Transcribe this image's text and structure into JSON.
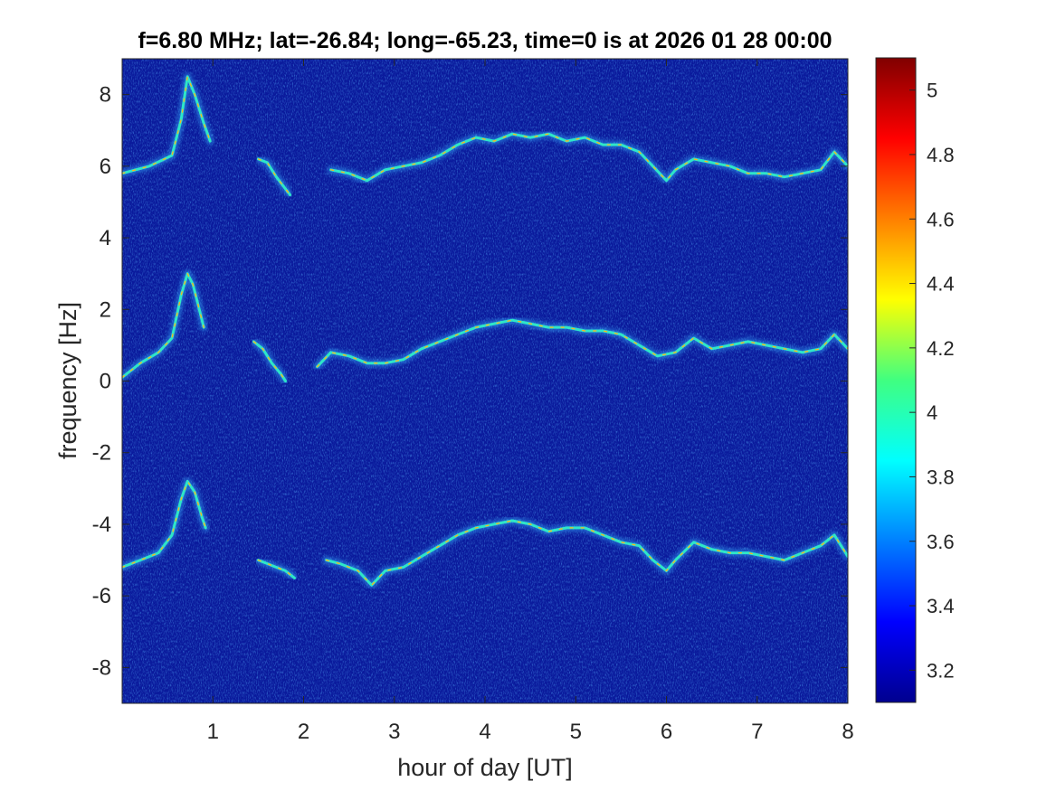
{
  "chart_data": {
    "type": "heatmap",
    "title": "f=6.80 MHz;  lat=-26.84; long=-65.23, time=0 is at 2026 01 28 00:00",
    "xlabel": "hour of day [UT]",
    "ylabel": "frequency [Hz]",
    "xlim": [
      0,
      8
    ],
    "ylim": [
      -9,
      9
    ],
    "x_ticks": [
      1,
      2,
      3,
      4,
      5,
      6,
      7,
      8
    ],
    "y_ticks": [
      -8,
      -6,
      -4,
      -2,
      0,
      2,
      4,
      6,
      8
    ],
    "x_tick_labels": [
      "1",
      "2",
      "3",
      "4",
      "5",
      "6",
      "7",
      "8"
    ],
    "y_tick_labels": [
      "-8",
      "-6",
      "-4",
      "-2",
      "0",
      "2",
      "4",
      "6",
      "8"
    ],
    "colorbar": {
      "range": [
        3.1,
        5.1
      ],
      "ticks": [
        3.2,
        3.4,
        3.6,
        3.8,
        4,
        4.2,
        4.4,
        4.6,
        4.8,
        5
      ],
      "tick_labels": [
        "3.2",
        "3.4",
        "3.6",
        "3.8",
        "4",
        "4.2",
        "4.4",
        "4.6",
        "4.8",
        "5"
      ],
      "colormap": "jet"
    },
    "background_color": "#0a1a9c",
    "grid": false,
    "series": [
      {
        "x": [
          0.0,
          0.3,
          0.55,
          0.65,
          0.72,
          0.8,
          0.9,
          0.97
        ],
        "y": [
          5.8,
          6.0,
          6.3,
          7.3,
          8.5,
          8.0,
          7.2,
          6.7
        ]
      },
      {
        "x": [
          1.5,
          1.6,
          1.7,
          1.85
        ],
        "y": [
          6.2,
          6.1,
          5.7,
          5.2
        ]
      },
      {
        "x": [
          2.3,
          2.5,
          2.7,
          2.9,
          3.1,
          3.3,
          3.5,
          3.7,
          3.9,
          4.1,
          4.3,
          4.5,
          4.7,
          4.9,
          5.1,
          5.3,
          5.5,
          5.7,
          5.85,
          6.0,
          6.1,
          6.3,
          6.5,
          6.7,
          6.9,
          7.1,
          7.3,
          7.5,
          7.7,
          7.85,
          8.0
        ],
        "y": [
          5.9,
          5.8,
          5.6,
          5.9,
          6.0,
          6.1,
          6.3,
          6.6,
          6.8,
          6.7,
          6.9,
          6.8,
          6.9,
          6.7,
          6.8,
          6.6,
          6.6,
          6.4,
          6.0,
          5.6,
          5.9,
          6.2,
          6.1,
          6.0,
          5.8,
          5.8,
          5.7,
          5.8,
          5.9,
          6.4,
          6.0
        ]
      },
      {
        "x": [
          0.0,
          0.2,
          0.4,
          0.55,
          0.65,
          0.72,
          0.78,
          0.84,
          0.9
        ],
        "y": [
          0.1,
          0.5,
          0.8,
          1.2,
          2.4,
          3.0,
          2.7,
          2.1,
          1.5
        ]
      },
      {
        "x": [
          1.45,
          1.55,
          1.65,
          1.75,
          1.8
        ],
        "y": [
          1.1,
          0.9,
          0.5,
          0.2,
          0.0
        ]
      },
      {
        "x": [
          2.15,
          2.3,
          2.5,
          2.7,
          2.9,
          3.1,
          3.3,
          3.5,
          3.7,
          3.9,
          4.1,
          4.3,
          4.5,
          4.7,
          4.9,
          5.1,
          5.3,
          5.5,
          5.7,
          5.9,
          6.1,
          6.3,
          6.5,
          6.7,
          6.9,
          7.1,
          7.3,
          7.5,
          7.7,
          7.85,
          8.0
        ],
        "y": [
          0.4,
          0.8,
          0.7,
          0.5,
          0.5,
          0.6,
          0.9,
          1.1,
          1.3,
          1.5,
          1.6,
          1.7,
          1.6,
          1.5,
          1.5,
          1.4,
          1.4,
          1.3,
          1.0,
          0.7,
          0.8,
          1.2,
          0.9,
          1.0,
          1.1,
          1.0,
          0.9,
          0.8,
          0.9,
          1.3,
          0.9
        ]
      },
      {
        "x": [
          0.0,
          0.2,
          0.4,
          0.55,
          0.65,
          0.72,
          0.8,
          0.88,
          0.92
        ],
        "y": [
          -5.2,
          -5.0,
          -4.8,
          -4.3,
          -3.3,
          -2.8,
          -3.1,
          -3.8,
          -4.1
        ]
      },
      {
        "x": [
          1.5,
          1.6,
          1.7,
          1.8,
          1.9
        ],
        "y": [
          -5.0,
          -5.1,
          -5.2,
          -5.3,
          -5.5
        ]
      },
      {
        "x": [
          2.25,
          2.4,
          2.6,
          2.75,
          2.9,
          3.1,
          3.3,
          3.5,
          3.7,
          3.9,
          4.1,
          4.3,
          4.5,
          4.7,
          4.9,
          5.1,
          5.3,
          5.5,
          5.7,
          5.85,
          6.0,
          6.1,
          6.3,
          6.5,
          6.7,
          6.9,
          7.1,
          7.3,
          7.5,
          7.7,
          7.85,
          8.0
        ],
        "y": [
          -5.0,
          -5.1,
          -5.3,
          -5.7,
          -5.3,
          -5.2,
          -4.9,
          -4.6,
          -4.3,
          -4.1,
          -4.0,
          -3.9,
          -4.0,
          -4.2,
          -4.1,
          -4.1,
          -4.3,
          -4.5,
          -4.6,
          -5.0,
          -5.3,
          -5.0,
          -4.5,
          -4.7,
          -4.8,
          -4.8,
          -4.9,
          -5.0,
          -4.8,
          -4.6,
          -4.3,
          -4.9
        ]
      }
    ]
  }
}
